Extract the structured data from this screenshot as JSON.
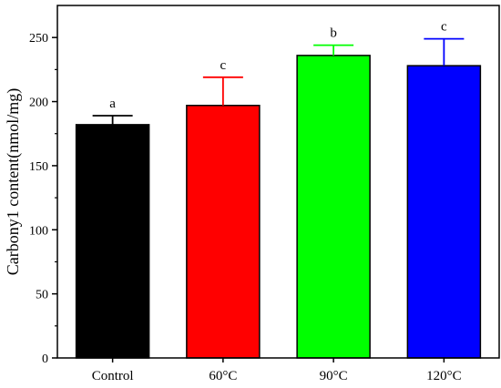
{
  "chart_data": {
    "type": "bar",
    "title": "",
    "xlabel": "",
    "ylabel": "Carbony1 content(nmol/mg)",
    "ylim": [
      0,
      275
    ],
    "yticks": [
      0,
      50,
      100,
      150,
      200,
      250
    ],
    "grid": false,
    "categories": [
      "Control",
      "60°C",
      "90°C",
      "120°C"
    ],
    "values": [
      182,
      197,
      236,
      228
    ],
    "errors": [
      7,
      22,
      8,
      21
    ],
    "significance": [
      "a",
      "c",
      "b",
      "c"
    ],
    "colors": [
      "#000000",
      "#ff0000",
      "#00ff00",
      "#0000ff"
    ]
  }
}
